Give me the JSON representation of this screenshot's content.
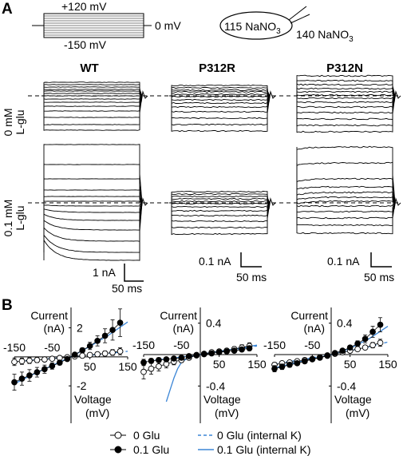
{
  "panel_a": {
    "letter": "A",
    "protocol": {
      "top_label": "+120 mV",
      "hold_label": "0 mV",
      "bottom_label": "-150 mV"
    },
    "solution": {
      "bath_prefix": "115 NaNO",
      "bath_sub": "3",
      "pipette_prefix": "140 NaNO",
      "pipette_sub": "3"
    },
    "columns": [
      "WT",
      "P312R",
      "P312N"
    ],
    "rows": [
      {
        "line1": "0 mM",
        "line2": "L-glu"
      },
      {
        "line1": "0.1 mM",
        "line2": "L-glu"
      }
    ],
    "scale_bars": [
      {
        "current": "1 nA",
        "time": "50 ms"
      },
      {
        "current": "0.1 nA",
        "time": "50 ms"
      },
      {
        "current": "0.1 nA",
        "time": "50 ms"
      }
    ]
  },
  "panel_b": {
    "letter": "B"
  },
  "chart_data": [
    {
      "type": "scatter",
      "title": "",
      "xlabel": "Voltage (mV)",
      "ylabel": "Current (nA)",
      "xlim": [
        -150,
        150
      ],
      "ylim": [
        -3.2,
        3.4
      ],
      "x_tick_labels": [
        "-150",
        "-50",
        "50",
        "150"
      ],
      "y_tick_labels": [
        "2",
        "-2"
      ],
      "x": [
        -150,
        -130,
        -110,
        -90,
        -70,
        -50,
        -30,
        -10,
        10,
        30,
        50,
        70,
        90,
        110,
        130
      ],
      "series": [
        {
          "name": "0 Glu",
          "values": [
            -0.35,
            -0.3,
            -0.26,
            -0.22,
            -0.18,
            -0.13,
            -0.08,
            -0.03,
            0.03,
            0.08,
            0.13,
            0.18,
            0.23,
            0.3,
            0.38
          ],
          "errors": [
            0.25,
            0.22,
            0.2,
            0.17,
            0.14,
            0.11,
            0.08,
            0.05,
            0.04,
            0.07,
            0.1,
            0.13,
            0.17,
            0.2,
            0.24
          ]
        },
        {
          "name": "0.1 Glu",
          "values": [
            -1.75,
            -1.5,
            -1.28,
            -1.06,
            -0.85,
            -0.63,
            -0.4,
            -0.15,
            0.15,
            0.45,
            0.75,
            1.1,
            1.45,
            1.85,
            2.35
          ],
          "errors": [
            0.55,
            0.45,
            0.4,
            0.33,
            0.28,
            0.22,
            0.16,
            0.08,
            0.08,
            0.16,
            0.25,
            0.35,
            0.48,
            0.7,
            0.95
          ]
        },
        {
          "name": "0 Glu (internal K)",
          "line": [
            [
              -150,
              -0.33
            ],
            [
              -90,
              -0.2
            ],
            [
              -30,
              -0.07
            ],
            [
              0,
              0
            ],
            [
              30,
              0.07
            ],
            [
              90,
              0.2
            ],
            [
              150,
              0.38
            ]
          ]
        },
        {
          "name": "0.1 Glu (internal K)",
          "line": [
            [
              -150,
              -1.85
            ],
            [
              -100,
              -1.2
            ],
            [
              -50,
              -0.6
            ],
            [
              0,
              0
            ],
            [
              50,
              0.72
            ],
            [
              100,
              1.5
            ],
            [
              150,
              2.4
            ]
          ]
        }
      ]
    },
    {
      "type": "scatter",
      "title": "",
      "xlabel": "Voltage (mV)",
      "ylabel": "Current (nA)",
      "xlim": [
        -150,
        150
      ],
      "ylim": [
        -0.62,
        0.6
      ],
      "x_tick_labels": [
        "-150",
        "-50",
        "50",
        "150"
      ],
      "y_tick_labels": [
        "0.4",
        "-0.4"
      ],
      "x": [
        -150,
        -130,
        -110,
        -90,
        -70,
        -50,
        -30,
        -10,
        10,
        30,
        50,
        70,
        90,
        110,
        130
      ],
      "series": [
        {
          "name": "0 Glu",
          "values": [
            -0.22,
            -0.18,
            -0.15,
            -0.12,
            -0.09,
            -0.07,
            -0.04,
            -0.01,
            0.01,
            0.03,
            0.04,
            0.05,
            0.07,
            0.09,
            0.11
          ],
          "errors": [
            0.09,
            0.07,
            0.06,
            0.05,
            0.04,
            0.03,
            0.02,
            0.01,
            0.01,
            0.015,
            0.02,
            0.025,
            0.03,
            0.035,
            0.04
          ]
        },
        {
          "name": "0.1 Glu",
          "values": [
            -0.1,
            -0.08,
            -0.07,
            -0.06,
            -0.05,
            -0.04,
            -0.02,
            -0.005,
            0.005,
            0.015,
            0.03,
            0.04,
            0.05,
            0.065,
            0.08
          ],
          "errors": [
            0.04,
            0.03,
            0.03,
            0.025,
            0.02,
            0.015,
            0.01,
            0.005,
            0.005,
            0.01,
            0.015,
            0.02,
            0.02,
            0.025,
            0.03
          ]
        },
        {
          "name": "0 Glu (internal K)",
          "line": [
            [
              -150,
              -0.09
            ],
            [
              -100,
              -0.06
            ],
            [
              -50,
              -0.03
            ],
            [
              0,
              0
            ],
            [
              50,
              0.035
            ],
            [
              100,
              0.07
            ],
            [
              150,
              0.11
            ]
          ]
        },
        {
          "name": "0.1 Glu (internal K)",
          "line": [
            [
              -90,
              -0.6
            ],
            [
              -80,
              -0.45
            ],
            [
              -70,
              -0.3
            ],
            [
              -60,
              -0.18
            ],
            [
              -50,
              -0.1
            ],
            [
              -35,
              -0.05
            ],
            [
              -20,
              -0.02
            ],
            [
              0,
              0
            ],
            [
              30,
              0.03
            ],
            [
              60,
              0.05
            ],
            [
              100,
              0.08
            ],
            [
              150,
              0.12
            ]
          ]
        }
      ]
    },
    {
      "type": "scatter",
      "title": "",
      "xlabel": "Voltage (mV)",
      "ylabel": "Current (nA)",
      "xlim": [
        -150,
        150
      ],
      "ylim": [
        -0.62,
        0.6
      ],
      "x_tick_labels": [
        "-150",
        "-50",
        "50",
        "150"
      ],
      "y_tick_labels": [
        "0.4",
        "-0.4"
      ],
      "x": [
        -150,
        -130,
        -110,
        -90,
        -70,
        -50,
        -30,
        -10,
        10,
        30,
        50,
        70,
        90,
        110,
        130
      ],
      "series": [
        {
          "name": "0 Glu",
          "values": [
            -0.13,
            -0.11,
            -0.1,
            -0.085,
            -0.07,
            -0.055,
            -0.035,
            -0.01,
            0.01,
            0.03,
            0.05,
            0.07,
            0.09,
            0.12,
            0.15
          ],
          "errors": [
            0.03,
            0.025,
            0.02,
            0.02,
            0.015,
            0.012,
            0.01,
            0.005,
            0.005,
            0.01,
            0.015,
            0.02,
            0.025,
            0.035,
            0.045
          ]
        },
        {
          "name": "0.1 Glu",
          "values": [
            -0.18,
            -0.155,
            -0.13,
            -0.11,
            -0.085,
            -0.06,
            -0.04,
            -0.015,
            0.02,
            0.05,
            0.09,
            0.14,
            0.2,
            0.29,
            0.38
          ],
          "errors": [
            0.04,
            0.035,
            0.03,
            0.025,
            0.02,
            0.015,
            0.01,
            0.006,
            0.006,
            0.015,
            0.025,
            0.035,
            0.05,
            0.07,
            0.09
          ]
        },
        {
          "name": "0 Glu (internal K)",
          "line": [
            [
              -150,
              -0.12
            ],
            [
              -100,
              -0.08
            ],
            [
              -50,
              -0.04
            ],
            [
              0,
              0
            ],
            [
              50,
              0.05
            ],
            [
              100,
              0.1
            ],
            [
              150,
              0.16
            ]
          ]
        },
        {
          "name": "0.1 Glu (internal K)",
          "line": [
            [
              -150,
              -0.17
            ],
            [
              -100,
              -0.11
            ],
            [
              -50,
              -0.055
            ],
            [
              0,
              0
            ],
            [
              50,
              0.08
            ],
            [
              100,
              0.2
            ],
            [
              150,
              0.36
            ]
          ]
        }
      ]
    }
  ],
  "legend": {
    "items": [
      {
        "label": "0 Glu",
        "marker": "open-circle"
      },
      {
        "label": "0.1 Glu",
        "marker": "filled-circle"
      },
      {
        "label": "0 Glu (internal K)",
        "marker": "dashed-line",
        "color": "#3c86d6"
      },
      {
        "label": "0.1 Glu (internal K)",
        "marker": "solid-line",
        "color": "#3c86d6"
      }
    ]
  }
}
